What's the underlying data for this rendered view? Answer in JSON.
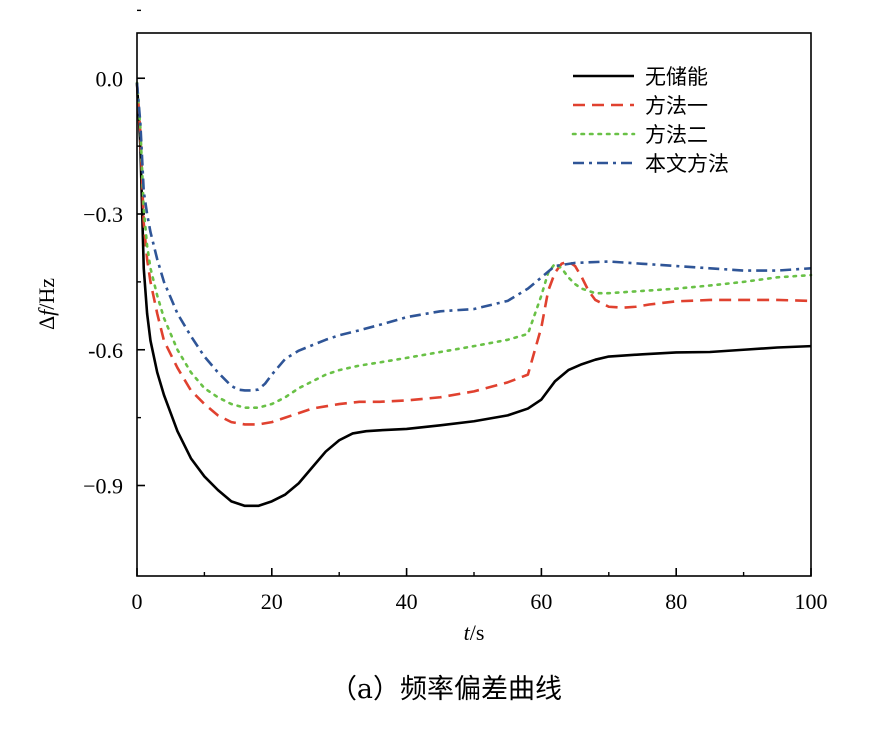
{
  "chart_data": {
    "type": "line",
    "title": "",
    "caption": "（a）频率偏差曲线",
    "xlabel_italic": "t",
    "xlabel_unit": "/s",
    "ylabel_italic": "f",
    "ylabel_prefix": "Δ",
    "ylabel_unit": "/Hz",
    "xlim": [
      0,
      100
    ],
    "ylim": [
      -1.1,
      0.1
    ],
    "x_ticks": [
      0,
      20,
      40,
      60,
      80,
      100
    ],
    "x_tick_labels": [
      "0",
      "20",
      "40",
      "60",
      "80",
      "100"
    ],
    "y_ticks": [
      0.0,
      -0.3,
      -0.6,
      -0.9
    ],
    "y_tick_labels": [
      "0.0",
      "−0.3",
      "-0.6",
      "−0.9"
    ],
    "grid": false,
    "legend_position": "top-right",
    "series": [
      {
        "name": "无储能",
        "color": "#000000",
        "dash": "solid",
        "x": [
          0,
          0.5,
          1,
          1.5,
          2,
          3,
          4,
          5,
          6,
          8,
          10,
          12,
          14,
          16,
          18,
          20,
          22,
          24,
          26,
          28,
          30,
          32,
          34,
          36,
          40,
          45,
          50,
          55,
          58,
          60,
          62,
          64,
          66,
          68,
          70,
          75,
          80,
          85,
          90,
          95,
          100
        ],
        "y": [
          -0.01,
          -0.15,
          -0.42,
          -0.52,
          -0.58,
          -0.65,
          -0.7,
          -0.74,
          -0.78,
          -0.84,
          -0.88,
          -0.91,
          -0.935,
          -0.945,
          -0.945,
          -0.935,
          -0.92,
          -0.895,
          -0.86,
          -0.825,
          -0.8,
          -0.785,
          -0.78,
          -0.778,
          -0.775,
          -0.767,
          -0.758,
          -0.745,
          -0.73,
          -0.71,
          -0.67,
          -0.645,
          -0.632,
          -0.622,
          -0.615,
          -0.61,
          -0.606,
          -0.605,
          -0.6,
          -0.595,
          -0.592
        ]
      },
      {
        "name": "方法一",
        "color": "#E0412F",
        "dash": "dashed",
        "x": [
          0,
          0.5,
          1,
          1.5,
          2,
          3,
          4,
          6,
          8,
          10,
          12,
          14,
          16,
          18,
          20,
          22,
          24,
          26,
          28,
          30,
          33,
          36,
          40,
          45,
          50,
          55,
          58,
          60,
          61,
          62,
          63,
          64,
          65,
          66,
          67,
          68,
          70,
          72,
          74,
          76,
          80,
          85,
          90,
          95,
          100
        ],
        "y": [
          -0.01,
          -0.12,
          -0.32,
          -0.4,
          -0.45,
          -0.52,
          -0.58,
          -0.64,
          -0.69,
          -0.72,
          -0.745,
          -0.76,
          -0.765,
          -0.765,
          -0.76,
          -0.75,
          -0.74,
          -0.73,
          -0.725,
          -0.72,
          -0.715,
          -0.715,
          -0.712,
          -0.705,
          -0.692,
          -0.672,
          -0.655,
          -0.55,
          -0.47,
          -0.43,
          -0.41,
          -0.405,
          -0.415,
          -0.44,
          -0.47,
          -0.49,
          -0.505,
          -0.507,
          -0.505,
          -0.5,
          -0.493,
          -0.49,
          -0.49,
          -0.49,
          -0.492
        ]
      },
      {
        "name": "方法二",
        "color": "#69C146",
        "dash": "dotted",
        "x": [
          0,
          0.5,
          1,
          1.5,
          2,
          3,
          4,
          6,
          8,
          10,
          12,
          14,
          16,
          18,
          20,
          22,
          24,
          26,
          28,
          30,
          33,
          36,
          40,
          45,
          50,
          55,
          58,
          60,
          61,
          62,
          63,
          64,
          65,
          66,
          67,
          68,
          70,
          75,
          80,
          85,
          90,
          95,
          100
        ],
        "y": [
          -0.01,
          -0.11,
          -0.29,
          -0.37,
          -0.42,
          -0.48,
          -0.53,
          -0.6,
          -0.65,
          -0.685,
          -0.705,
          -0.72,
          -0.728,
          -0.728,
          -0.72,
          -0.705,
          -0.685,
          -0.67,
          -0.655,
          -0.645,
          -0.635,
          -0.628,
          -0.618,
          -0.605,
          -0.592,
          -0.578,
          -0.565,
          -0.48,
          -0.43,
          -0.41,
          -0.42,
          -0.44,
          -0.455,
          -0.465,
          -0.47,
          -0.475,
          -0.475,
          -0.47,
          -0.465,
          -0.458,
          -0.45,
          -0.44,
          -0.435
        ]
      },
      {
        "name": "本文方法",
        "color": "#2F5597",
        "dash": "dashdot",
        "x": [
          0,
          0.5,
          1,
          1.5,
          2,
          3,
          4,
          6,
          8,
          10,
          12,
          14,
          15,
          16,
          17,
          18,
          19,
          20,
          22,
          24,
          26,
          28,
          30,
          33,
          36,
          40,
          45,
          50,
          55,
          58,
          60,
          62,
          65,
          70,
          75,
          80,
          85,
          90,
          95,
          100
        ],
        "y": [
          -0.01,
          -0.1,
          -0.25,
          -0.3,
          -0.34,
          -0.4,
          -0.45,
          -0.52,
          -0.57,
          -0.615,
          -0.65,
          -0.68,
          -0.688,
          -0.69,
          -0.69,
          -0.688,
          -0.675,
          -0.655,
          -0.62,
          -0.602,
          -0.59,
          -0.578,
          -0.568,
          -0.557,
          -0.545,
          -0.528,
          -0.515,
          -0.51,
          -0.492,
          -0.465,
          -0.44,
          -0.415,
          -0.408,
          -0.405,
          -0.41,
          -0.415,
          -0.42,
          -0.425,
          -0.425,
          -0.42
        ]
      }
    ]
  }
}
